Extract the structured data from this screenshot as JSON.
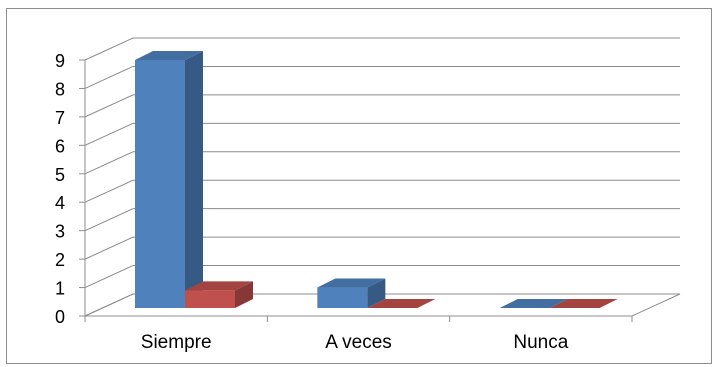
{
  "chart_data": {
    "type": "bar",
    "categories": [
      "Siempre",
      "A veces",
      "Nunca"
    ],
    "series": [
      {
        "values": [
          9,
          1,
          0
        ],
        "color": "#4f81bd"
      },
      {
        "values": [
          0.9,
          0,
          0
        ],
        "color": "#c0504d"
      }
    ],
    "y_ticks": [
      "0",
      "1",
      "2",
      "3",
      "4",
      "5",
      "6",
      "7",
      "8",
      "9"
    ],
    "ylim": [
      0,
      9
    ],
    "grid": true,
    "legend": "none",
    "style": "3d-clustered-column"
  }
}
